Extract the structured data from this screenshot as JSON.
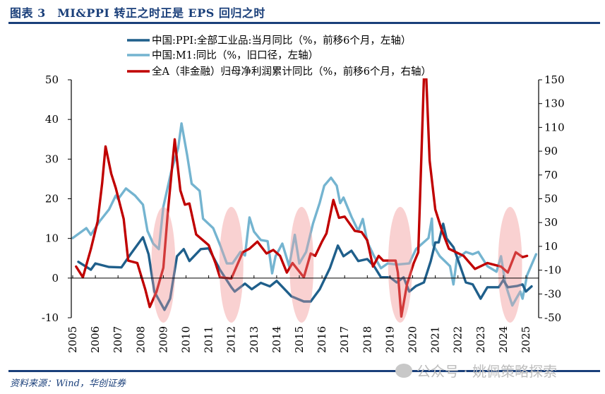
{
  "header": {
    "title": "图表 3　MI&PPI 转正之时正是 EPS 回归之时"
  },
  "footer": {
    "source": "资料来源：Wind，华创证券",
    "watermark": "公众号 · 姚佩策略探索"
  },
  "chart_data": {
    "type": "line",
    "title": "",
    "xlabel": "",
    "ylabel_left": "",
    "ylabel_right": "",
    "x_ticks": [
      "2005",
      "2006",
      "2007",
      "2008",
      "2009",
      "2010",
      "2011",
      "2012",
      "2013",
      "2014",
      "2015",
      "2016",
      "2017",
      "2018",
      "2019",
      "2020",
      "2021",
      "2022",
      "2023",
      "2024",
      "2025"
    ],
    "left_axis": {
      "ylim": [
        -10,
        50
      ],
      "ticks": [
        "50",
        "40",
        "30",
        "20",
        "10",
        "0",
        "-10"
      ]
    },
    "right_axis": {
      "ylim": [
        -50,
        150
      ],
      "ticks": [
        "150",
        "130",
        "110",
        "90",
        "70",
        "50",
        "30",
        "10",
        "-10",
        "-30",
        "-50"
      ]
    },
    "legend_position": "top",
    "grid": false,
    "highlight_periods": [
      2009.0,
      2012.0,
      2015.1,
      2019.45,
      2024.3
    ],
    "highlight_color": "#f4a6a6",
    "series": [
      {
        "name": "中国:PPI:全部工业品:当月同比（%，前移6个月，左轴）",
        "axis": "left",
        "color": "#1f5f8b",
        "x": [
          2005.25,
          2005.8,
          2006.0,
          2006.6,
          2007.15,
          2007.55,
          2008.1,
          2008.35,
          2008.6,
          2009.05,
          2009.3,
          2009.6,
          2009.9,
          2010.15,
          2010.65,
          2011.0,
          2011.5,
          2012.0,
          2012.15,
          2012.6,
          2012.9,
          2013.3,
          2013.7,
          2014.0,
          2014.65,
          2015.2,
          2015.5,
          2015.9,
          2016.35,
          2016.7,
          2016.95,
          2017.3,
          2017.6,
          2018.0,
          2018.3,
          2018.6,
          2019.0,
          2019.3,
          2019.6,
          2019.85,
          2020.15,
          2020.5,
          2020.8,
          2021.0,
          2021.15,
          2021.35,
          2021.5,
          2021.8,
          2022.1,
          2022.35,
          2022.65,
          2023.0,
          2023.3,
          2023.8,
          2024.0,
          2024.2,
          2024.6,
          2024.85,
          2025.0,
          2025.25
        ],
        "y": [
          4.1,
          2.1,
          3.7,
          2.8,
          2.7,
          6,
          10.3,
          6,
          -3.4,
          -8,
          -5.2,
          5.5,
          7.3,
          4.3,
          7.3,
          7.5,
          2.1,
          -2.3,
          -3.4,
          -1.4,
          -2.8,
          -1.2,
          -2.1,
          -0.7,
          -4.6,
          -5.9,
          -5.9,
          -2.8,
          2.5,
          8.2,
          5.5,
          6.9,
          4.3,
          4.8,
          3.0,
          0.2,
          0.2,
          -1.1,
          0.2,
          -3.4,
          -2,
          -1.1,
          4.3,
          9,
          9,
          13.7,
          10,
          7.8,
          3,
          -1.1,
          -1.6,
          -5.2,
          -2.3,
          -2.3,
          -0.5,
          -2.3,
          -2,
          -1.6,
          -3.4,
          -2.1
        ]
      },
      {
        "name": "中国:M1:同比（%，旧口径，左轴）",
        "axis": "left",
        "color": "#74b4d0",
        "x": [
          2005.0,
          2005.6,
          2005.8,
          2006.2,
          2006.6,
          2006.9,
          2007.0,
          2007.35,
          2007.75,
          2008.1,
          2008.3,
          2008.55,
          2008.8,
          2009.0,
          2009.35,
          2009.65,
          2009.8,
          2010.05,
          2010.25,
          2010.6,
          2010.75,
          2011.2,
          2011.5,
          2011.8,
          2012.05,
          2012.4,
          2012.6,
          2012.8,
          2013.0,
          2013.3,
          2013.6,
          2013.8,
          2013.95,
          2014.25,
          2014.55,
          2014.8,
          2015.0,
          2015.3,
          2015.6,
          2015.9,
          2016.1,
          2016.4,
          2016.65,
          2016.8,
          2016.95,
          2017.3,
          2017.6,
          2017.8,
          2018.0,
          2018.3,
          2018.6,
          2018.9,
          2019.3,
          2019.85,
          2020.15,
          2020.7,
          2020.85,
          2020.9,
          2021.2,
          2021.65,
          2021.8,
          2021.95,
          2022.35,
          2022.65,
          2022.9,
          2023.3,
          2023.7,
          2023.9,
          2024.1,
          2024.4,
          2024.75,
          2024.85,
          2025.05,
          2025.45
        ],
        "y": [
          10.1,
          12.6,
          10.9,
          14.4,
          17.3,
          20.8,
          19.9,
          22.6,
          20.8,
          18.5,
          11.9,
          8.7,
          7.3,
          18,
          26.9,
          32.7,
          39,
          31,
          23.8,
          22,
          15,
          12.6,
          8.4,
          3.7,
          3.7,
          6.6,
          5.7,
          15.3,
          11.7,
          9.6,
          9.3,
          1.2,
          5.5,
          8.7,
          3.0,
          10.9,
          3.7,
          6.6,
          13.7,
          19,
          23.3,
          25.3,
          23.3,
          18.9,
          20.3,
          15.5,
          11.9,
          14.9,
          9.1,
          5.5,
          2.5,
          3.7,
          3.4,
          3.7,
          7.3,
          10.1,
          15,
          8.4,
          5.5,
          3.0,
          -1.6,
          4.8,
          6.6,
          6,
          6.6,
          3,
          1.6,
          5.5,
          -1.6,
          -6.9,
          -3.4,
          -5.2,
          0.7,
          6
        ]
      },
      {
        "name": "全A（非金融）归母净利润累计同比（%，前移6个月，右轴）",
        "axis": "right",
        "color": "#c00000",
        "x": [
          2005.15,
          2005.45,
          2005.8,
          2006.1,
          2006.3,
          2006.45,
          2006.7,
          2006.9,
          2007.25,
          2007.45,
          2007.85,
          2008.2,
          2008.4,
          2008.7,
          2009.0,
          2009.2,
          2009.5,
          2009.75,
          2009.95,
          2010.15,
          2010.45,
          2011.0,
          2011.3,
          2011.5,
          2012.0,
          2012.5,
          2012.8,
          2013.15,
          2013.55,
          2013.85,
          2014.15,
          2014.45,
          2014.7,
          2015.2,
          2015.5,
          2015.7,
          2016.0,
          2016.2,
          2016.5,
          2016.75,
          2017.0,
          2017.45,
          2017.75,
          2018.0,
          2018.25,
          2018.5,
          2018.7,
          2019.25,
          2019.35,
          2019.5,
          2019.75,
          2020.05,
          2020.25,
          2020.4,
          2020.5,
          2020.6,
          2020.75,
          2021.0,
          2021.3,
          2021.6,
          2022.25,
          2022.75,
          2023.3,
          2023.9,
          2024.2,
          2024.55,
          2024.85,
          2025.05
        ],
        "y": [
          -7,
          -16,
          7.7,
          31,
          63,
          94,
          71,
          59,
          33,
          -2,
          -4,
          -26,
          -41,
          -28,
          -8,
          39,
          100,
          57,
          45,
          46,
          20,
          11,
          -4,
          -16,
          -17,
          5,
          8,
          14,
          4,
          7,
          2,
          -12,
          -4,
          -16,
          4,
          2,
          14,
          21,
          49,
          34,
          35,
          23,
          22,
          15,
          -7,
          2,
          -2,
          -2,
          -12,
          -49,
          -22,
          -4,
          5,
          93,
          152,
          152,
          82,
          41,
          23,
          8,
          2,
          -9,
          -4,
          -7,
          -12,
          5,
          1,
          2
        ]
      }
    ]
  }
}
